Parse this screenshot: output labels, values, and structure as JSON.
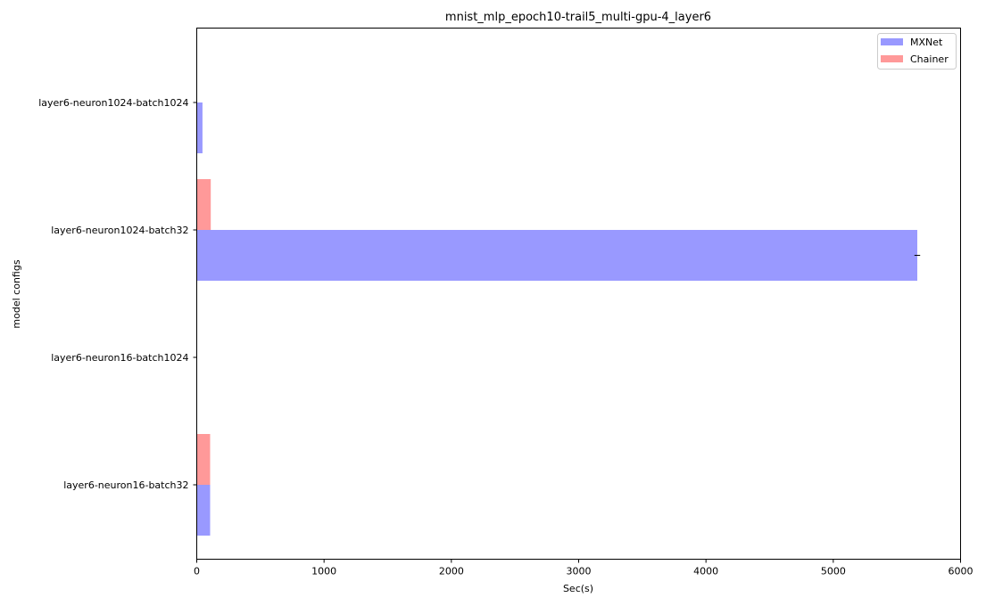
{
  "chart_data": {
    "type": "bar",
    "orientation": "horizontal",
    "title": "mnist_mlp_epoch10-trail5_multi-gpu-4_layer6",
    "xlabel": "Sec(s)",
    "ylabel": "model configs",
    "xlim": [
      0,
      6000
    ],
    "xticks": [
      "0",
      "1000",
      "2000",
      "3000",
      "4000",
      "5000",
      "6000"
    ],
    "grid": false,
    "legend_position": "top-right",
    "categories": [
      "layer6-neuron16-batch32",
      "layer6-neuron16-batch1024",
      "layer6-neuron1024-batch32",
      "layer6-neuron1024-batch1024"
    ],
    "series": [
      {
        "name": "MXNet",
        "color": "#9999ff",
        "values": [
          105,
          null,
          5660,
          45
        ],
        "errors": [
          null,
          null,
          45,
          null
        ]
      },
      {
        "name": "Chainer",
        "color": "#ff9999",
        "values": [
          105,
          null,
          110,
          null
        ],
        "errors": [
          null,
          null,
          null,
          null
        ]
      }
    ]
  }
}
